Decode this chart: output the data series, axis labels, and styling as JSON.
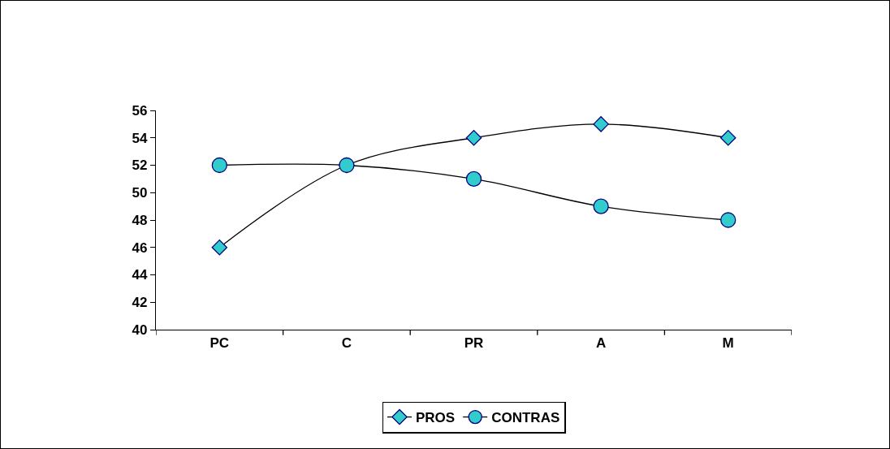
{
  "chart_data": {
    "type": "line",
    "categories": [
      "PC",
      "C",
      "PR",
      "A",
      "M"
    ],
    "series": [
      {
        "name": "PROS",
        "color": "#33cccc",
        "marker": "diamond",
        "values": [
          46,
          52,
          54,
          55,
          54
        ]
      },
      {
        "name": "CONTRAS",
        "color": "#33cccc",
        "marker": "circle",
        "values": [
          52,
          52,
          51,
          49,
          48
        ]
      }
    ],
    "ylim": [
      40,
      56
    ],
    "yticks": [
      40,
      42,
      44,
      46,
      48,
      50,
      52,
      54,
      56
    ],
    "grid": false,
    "legend": "bottom",
    "line_style": "solid"
  }
}
